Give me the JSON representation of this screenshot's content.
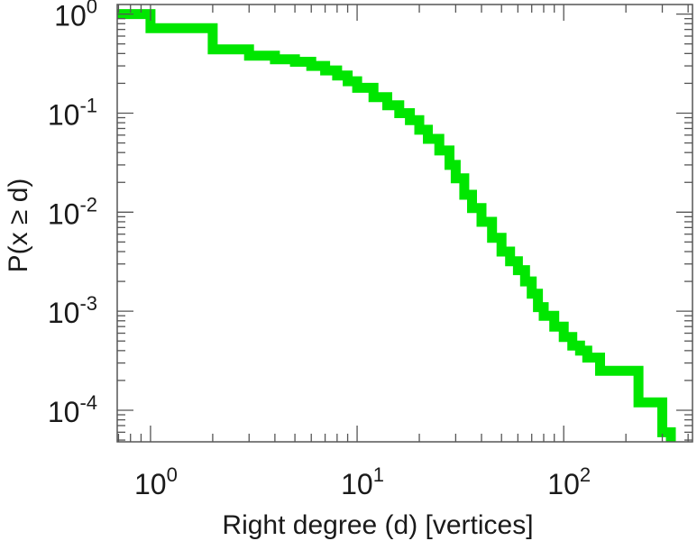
{
  "chart_data": {
    "type": "line",
    "style": "step",
    "xscale": "log",
    "yscale": "log",
    "xlim": [
      0.69,
      420
    ],
    "ylim": [
      4.8e-05,
      1.25
    ],
    "xlabel": "Right degree (d) [vertices]",
    "ylabel": "P(x ≥ d)",
    "grid": false,
    "legend": false,
    "x_ticks": [
      {
        "base": "10",
        "exp": "0"
      },
      {
        "base": "10",
        "exp": "1"
      },
      {
        "base": "10",
        "exp": "2"
      }
    ],
    "y_ticks": [
      {
        "base": "10",
        "exp": "0"
      },
      {
        "base": "10",
        "exp": "-1"
      },
      {
        "base": "10",
        "exp": "-2"
      },
      {
        "base": "10",
        "exp": "-3"
      },
      {
        "base": "10",
        "exp": "-4"
      }
    ],
    "series": [
      {
        "color": "#00e600",
        "x": [
          0.69,
          1,
          2,
          3,
          4,
          5,
          6,
          7,
          8,
          9,
          10,
          12,
          14,
          16,
          18,
          20,
          22,
          25,
          28,
          30,
          33,
          36,
          40,
          45,
          50,
          55,
          60,
          65,
          70,
          75,
          80,
          90,
          100,
          110,
          120,
          130,
          150,
          230,
          300,
          330
        ],
        "y": [
          1.0,
          0.72,
          0.44,
          0.38,
          0.35,
          0.33,
          0.3,
          0.27,
          0.24,
          0.21,
          0.18,
          0.145,
          0.12,
          0.1,
          0.085,
          0.068,
          0.055,
          0.042,
          0.03,
          0.022,
          0.015,
          0.011,
          0.008,
          0.0055,
          0.004,
          0.0032,
          0.0026,
          0.002,
          0.0015,
          0.0011,
          0.0009,
          0.0007,
          0.00055,
          0.00045,
          0.0004,
          0.00034,
          0.00025,
          0.00012,
          6e-05,
          4.8e-05
        ]
      }
    ]
  }
}
